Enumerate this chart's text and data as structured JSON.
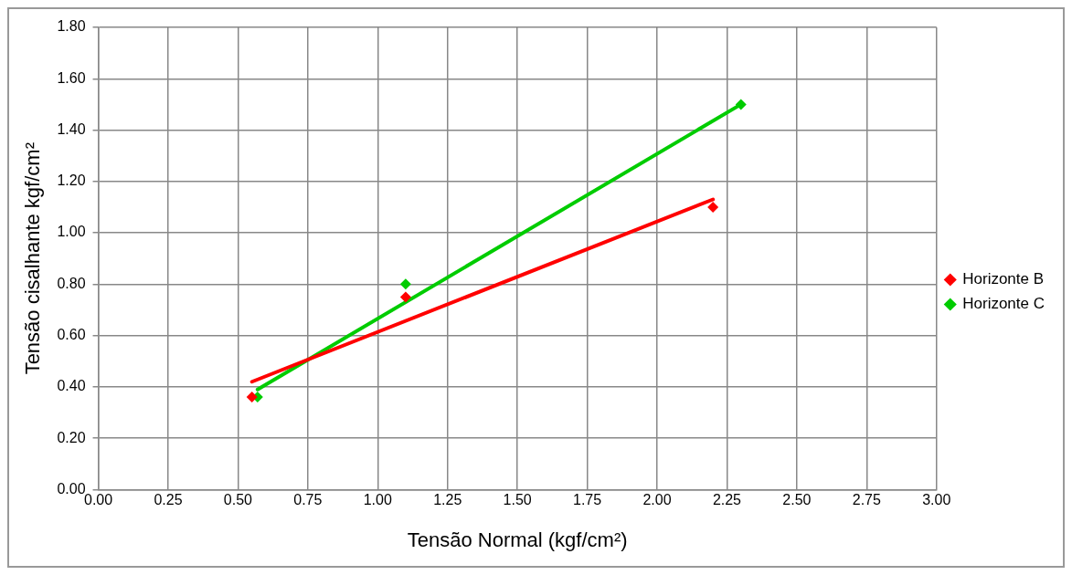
{
  "chart_data": {
    "type": "scatter",
    "xlabel": "Tensão Normal (kgf/cm²)",
    "ylabel": "Tensão cisalhante kgf/cm²",
    "xlim": [
      0,
      3
    ],
    "xticks": [
      {
        "value": 0,
        "label": "0.00"
      },
      {
        "value": 0.25,
        "label": "0.25"
      },
      {
        "value": 0.5,
        "label": "0.50"
      },
      {
        "value": 0.75,
        "label": "0.75"
      },
      {
        "value": 1,
        "label": "1.00"
      },
      {
        "value": 1.25,
        "label": "1.25"
      },
      {
        "value": 1.5,
        "label": "1.50"
      },
      {
        "value": 1.75,
        "label": "1.75"
      },
      {
        "value": 2,
        "label": "2.00"
      },
      {
        "value": 2.25,
        "label": "2.25"
      },
      {
        "value": 2.5,
        "label": "2.50"
      },
      {
        "value": 2.75,
        "label": "2.75"
      },
      {
        "value": 3,
        "label": "3.00"
      }
    ],
    "ylim": [
      0,
      1.8
    ],
    "yticks": [
      {
        "value": 0,
        "label": "0.00"
      },
      {
        "value": 0.2,
        "label": "0.20"
      },
      {
        "value": 0.4,
        "label": "0.40"
      },
      {
        "value": 0.6,
        "label": "0.60"
      },
      {
        "value": 0.8,
        "label": "0.80"
      },
      {
        "value": 1,
        "label": "1.00"
      },
      {
        "value": 1.2,
        "label": "1.20"
      },
      {
        "value": 1.4,
        "label": "1.40"
      },
      {
        "value": 1.6,
        "label": "1.60"
      },
      {
        "value": 1.8,
        "label": "1.80"
      }
    ],
    "grid": true,
    "legend": "right",
    "series": [
      {
        "name": "Horizonte B",
        "color": "#ff0000",
        "marker": "diamond",
        "x": [
          0.55,
          1.1,
          2.2
        ],
        "values": [
          0.36,
          0.75,
          1.1
        ]
      },
      {
        "name": "Horizonte C",
        "color": "#00cc00",
        "marker": "diamond",
        "x": [
          0.57,
          1.1,
          2.3
        ],
        "values": [
          0.36,
          0.8,
          1.5
        ]
      },
      {
        "type": "line",
        "color": "#ff0000",
        "marker": "none",
        "x": [
          0.55,
          2.2
        ],
        "values": [
          0.42,
          1.13
        ]
      },
      {
        "type": "line",
        "color": "#00cc00",
        "marker": "none",
        "x": [
          0.57,
          2.3
        ],
        "values": [
          0.39,
          1.5
        ]
      }
    ]
  }
}
